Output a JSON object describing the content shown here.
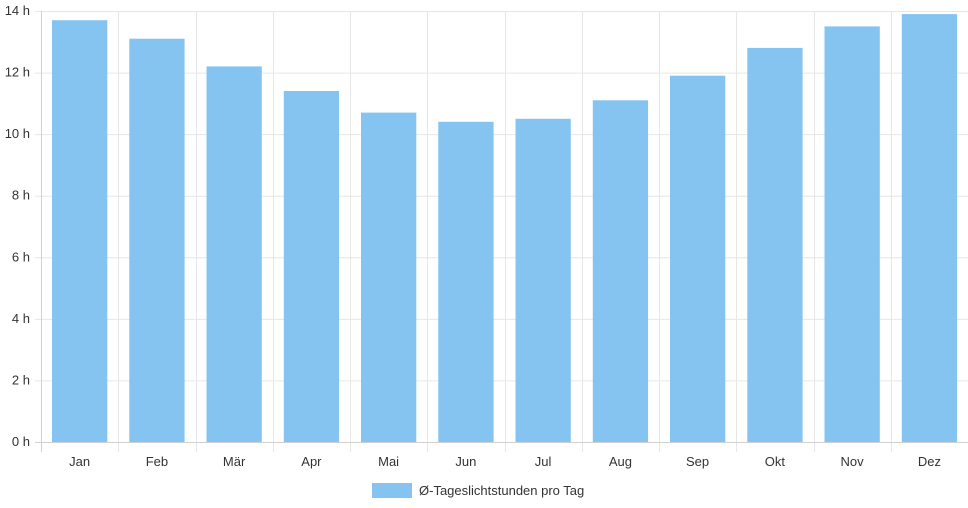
{
  "chart_data": {
    "type": "bar",
    "categories": [
      "Jan",
      "Feb",
      "Mär",
      "Apr",
      "Mai",
      "Jun",
      "Jul",
      "Aug",
      "Sep",
      "Okt",
      "Nov",
      "Dez"
    ],
    "series": [
      {
        "name": "Ø-Tageslichtstunden pro Tag",
        "values": [
          13.7,
          13.1,
          12.2,
          11.4,
          10.7,
          10.4,
          10.5,
          11.1,
          11.9,
          12.8,
          13.5,
          13.9
        ],
        "color": "#85c4f1"
      }
    ],
    "y_ticks": [
      "0 h",
      "2 h",
      "4 h",
      "6 h",
      "8 h",
      "10 h",
      "12 h",
      "14 h"
    ],
    "ylim": [
      0,
      14
    ],
    "y_tick_step": 2,
    "grid": true,
    "legend_position": "bottom-center"
  }
}
